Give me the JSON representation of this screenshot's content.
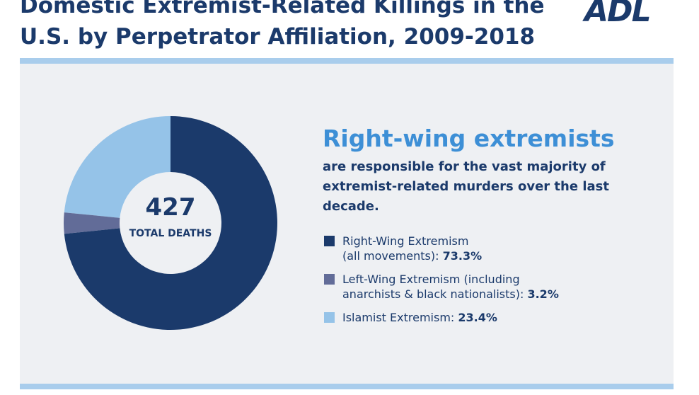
{
  "chart_data": {
    "type": "pie",
    "donut": true,
    "title": "Domestic Extremist-Related Killings in the U.S. by Perpetrator Affiliation, 2009-2018",
    "logo": "ADL",
    "center_value": "427",
    "center_label": "TOTAL DEATHS",
    "headline": "Right-wing extremists",
    "subheadline": "are responsible for the vast majority of extremist-related murders over the last decade.",
    "categories": [
      "Right-Wing Extremism (all movements):",
      "Left-Wing Extremism (including anarchists & black nationalists):",
      "Islamist Extremism:"
    ],
    "values": [
      73.3,
      3.2,
      23.4
    ],
    "value_labels": [
      "73.3%",
      "3.2%",
      "23.4%"
    ],
    "colors": [
      "#1b3a6b",
      "#626c98",
      "#95c3e8"
    ]
  }
}
